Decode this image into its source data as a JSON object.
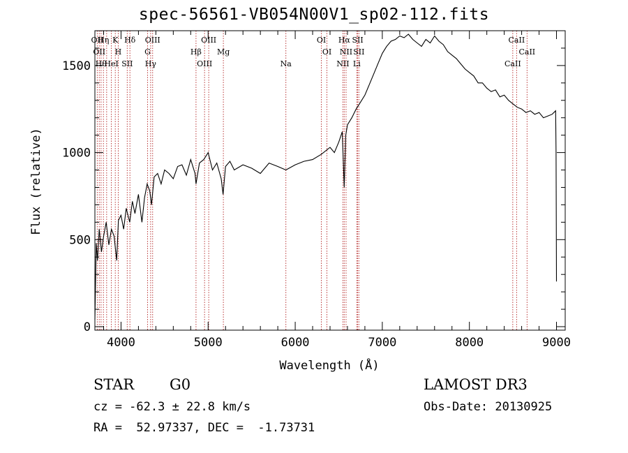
{
  "header": {
    "title": "spec-56561-VB054N00V1_sp02-112.fits"
  },
  "footer": {
    "object_class": "STAR",
    "subclass": "G0",
    "survey": "LAMOST DR3",
    "redshift": "cz = -62.3 ± 22.8 km/s",
    "obs_date": "Obs-Date: 20130925",
    "coordinates": "RA =  52.97337, DEC =  -1.73731"
  },
  "colors": {
    "line_marker": "#b22222",
    "spectrum": "#000000",
    "axes": "#000000"
  },
  "chart_data": {
    "type": "line",
    "title": "spec-56561-VB054N00V1_sp02-112.fits",
    "xlabel": "Wavelength (Å)",
    "ylabel": "Flux (relative)",
    "xlim": [
      3700,
      9100
    ],
    "ylim": [
      -20,
      1700
    ],
    "x_ticks": [
      4000,
      5000,
      6000,
      7000,
      8000,
      9000
    ],
    "y_ticks": [
      0,
      500,
      1000,
      1500
    ],
    "series": [
      {
        "name": "spectrum",
        "x": [
          3700,
          3715,
          3730,
          3750,
          3775,
          3800,
          3830,
          3860,
          3890,
          3920,
          3950,
          3970,
          4000,
          4030,
          4060,
          4100,
          4130,
          4160,
          4200,
          4240,
          4270,
          4300,
          4330,
          4350,
          4380,
          4420,
          4460,
          4500,
          4550,
          4600,
          4650,
          4700,
          4750,
          4800,
          4850,
          4861,
          4900,
          4950,
          5000,
          5050,
          5100,
          5150,
          5172,
          5200,
          5250,
          5300,
          5400,
          5500,
          5600,
          5700,
          5800,
          5893,
          6000,
          6100,
          6200,
          6300,
          6400,
          6450,
          6500,
          6540,
          6563,
          6580,
          6600,
          6650,
          6700,
          6750,
          6800,
          6850,
          6900,
          6950,
          7000,
          7050,
          7100,
          7150,
          7200,
          7250,
          7300,
          7350,
          7400,
          7450,
          7500,
          7550,
          7600,
          7650,
          7700,
          7750,
          7800,
          7850,
          7900,
          7950,
          8000,
          8050,
          8100,
          8150,
          8200,
          8250,
          8300,
          8350,
          8400,
          8450,
          8500,
          8550,
          8600,
          8650,
          8700,
          8750,
          8800,
          8850,
          8900,
          8950,
          8990,
          8995,
          9000
        ],
        "values": [
          40,
          480,
          380,
          560,
          430,
          520,
          600,
          470,
          560,
          520,
          380,
          610,
          640,
          560,
          680,
          600,
          720,
          650,
          760,
          600,
          740,
          820,
          780,
          700,
          860,
          880,
          820,
          900,
          880,
          850,
          920,
          930,
          870,
          960,
          880,
          820,
          940,
          960,
          1000,
          900,
          940,
          850,
          760,
          920,
          950,
          900,
          930,
          910,
          880,
          940,
          920,
          900,
          930,
          950,
          960,
          990,
          1030,
          1000,
          1060,
          1120,
          800,
          1100,
          1160,
          1200,
          1250,
          1290,
          1330,
          1390,
          1450,
          1510,
          1570,
          1610,
          1640,
          1650,
          1670,
          1660,
          1680,
          1650,
          1630,
          1610,
          1650,
          1630,
          1670,
          1640,
          1620,
          1580,
          1560,
          1540,
          1510,
          1480,
          1460,
          1440,
          1400,
          1400,
          1370,
          1350,
          1360,
          1320,
          1330,
          1300,
          1280,
          1260,
          1250,
          1230,
          1240,
          1220,
          1230,
          1200,
          1210,
          1220,
          1240,
          1000,
          260
        ]
      }
    ],
    "line_markers": [
      {
        "wavelength": 3727,
        "label": "OII"
      },
      {
        "wavelength": 3750,
        "label": "OII"
      },
      {
        "wavelength": 3771,
        "label": "Hθ"
      },
      {
        "wavelength": 3798,
        "label": "Hη"
      },
      {
        "wavelength": 3835,
        "label": ""
      },
      {
        "wavelength": 3889,
        "label": "HeI"
      },
      {
        "wavelength": 3934,
        "label": "K"
      },
      {
        "wavelength": 3968,
        "label": "H"
      },
      {
        "wavelength": 4071,
        "label": "SII"
      },
      {
        "wavelength": 4102,
        "label": "Hδ"
      },
      {
        "wavelength": 4305,
        "label": "G"
      },
      {
        "wavelength": 4340,
        "label": "Hγ"
      },
      {
        "wavelength": 4363,
        "label": "OIII"
      },
      {
        "wavelength": 4861,
        "label": "Hβ"
      },
      {
        "wavelength": 4959,
        "label": "OIII"
      },
      {
        "wavelength": 5007,
        "label": "OIII"
      },
      {
        "wavelength": 5175,
        "label": "Mg"
      },
      {
        "wavelength": 5893,
        "label": "Na"
      },
      {
        "wavelength": 6300,
        "label": "OI"
      },
      {
        "wavelength": 6364,
        "label": "OI"
      },
      {
        "wavelength": 6548,
        "label": "NII"
      },
      {
        "wavelength": 6563,
        "label": "Hα"
      },
      {
        "wavelength": 6584,
        "label": "NII"
      },
      {
        "wavelength": 6707,
        "label": "Li"
      },
      {
        "wavelength": 6717,
        "label": "SII"
      },
      {
        "wavelength": 6731,
        "label": "SII"
      },
      {
        "wavelength": 8498,
        "label": "CaII"
      },
      {
        "wavelength": 8542,
        "label": "CaII"
      },
      {
        "wavelength": 8662,
        "label": "CaII"
      }
    ]
  }
}
